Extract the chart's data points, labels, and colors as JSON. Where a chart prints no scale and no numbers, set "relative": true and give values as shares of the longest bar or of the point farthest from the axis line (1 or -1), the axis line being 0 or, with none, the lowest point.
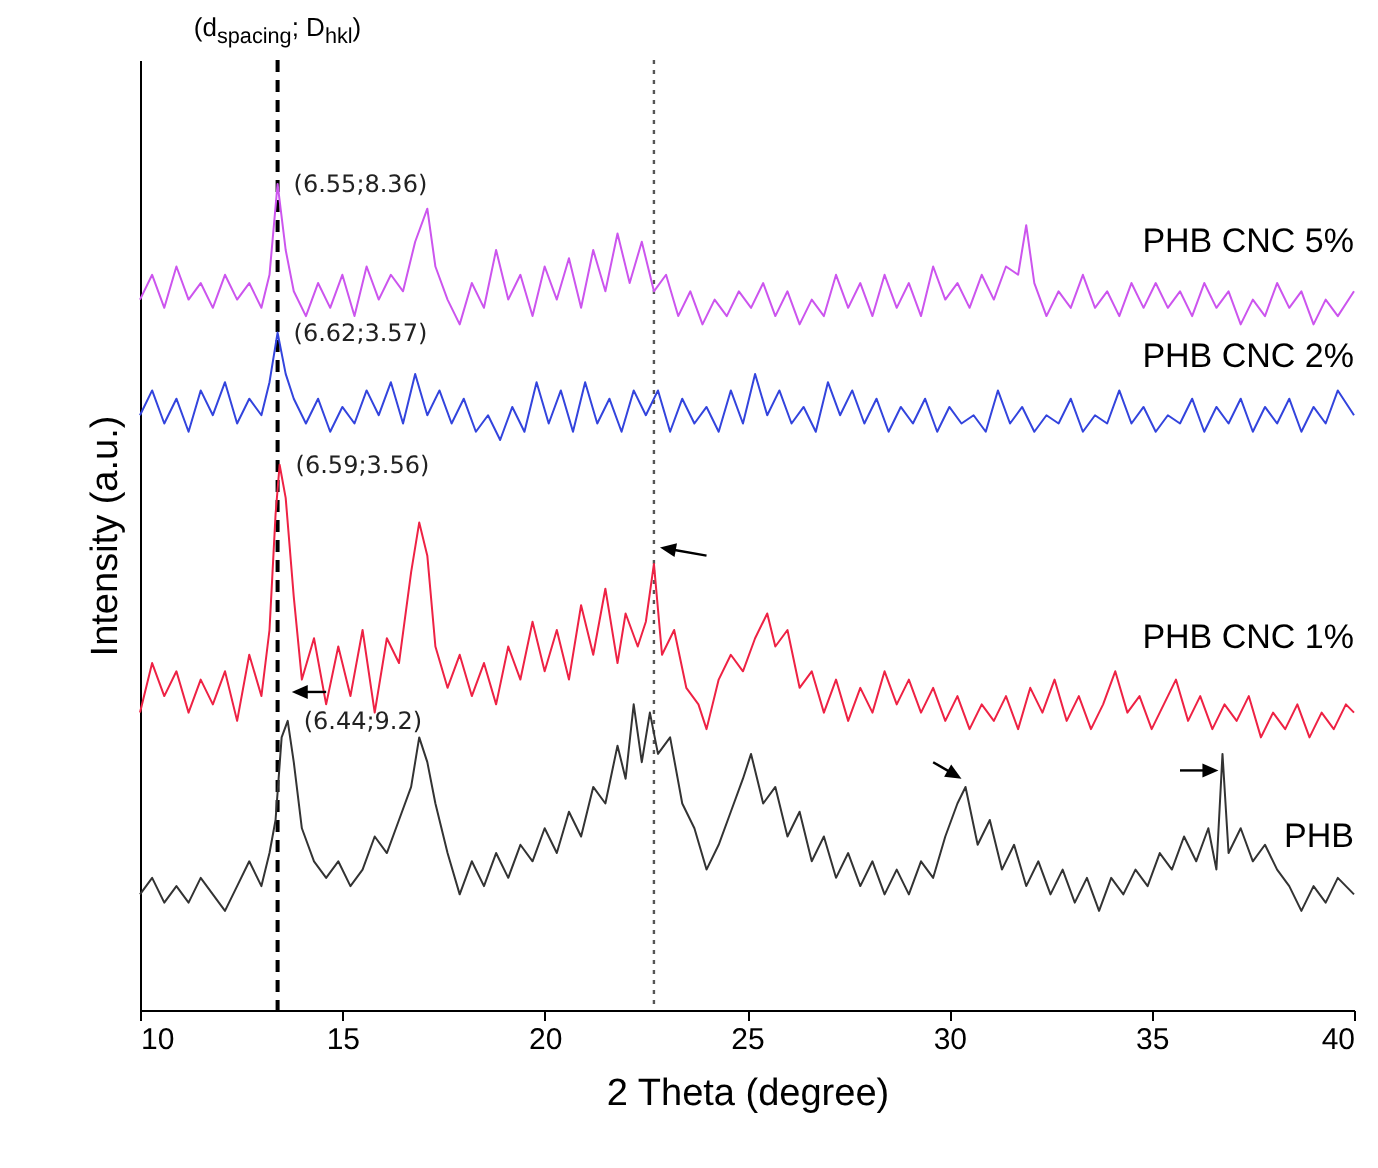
{
  "chart_data": {
    "type": "line",
    "relative": true,
    "xlabel": "2 Theta (degree)",
    "ylabel": "Intensity (a.u.)",
    "xlim": [
      10,
      40
    ],
    "xticks": [
      10,
      15,
      20,
      25,
      30,
      35,
      40
    ],
    "tick_labels": "x",
    "grid": false,
    "legend": false,
    "marker": "none",
    "line_style": "solid",
    "series": [
      {
        "name": "PHB CNC 5%",
        "color": "#cc55ee",
        "x": [
          10.0,
          10.3,
          10.6,
          10.9,
          11.2,
          11.5,
          11.8,
          12.1,
          12.4,
          12.7,
          13.0,
          13.2,
          13.4,
          13.6,
          13.8,
          14.1,
          14.4,
          14.7,
          15.0,
          15.3,
          15.6,
          15.9,
          16.2,
          16.5,
          16.8,
          17.1,
          17.3,
          17.6,
          17.9,
          18.2,
          18.5,
          18.8,
          19.1,
          19.4,
          19.7,
          20.0,
          20.3,
          20.6,
          20.9,
          21.2,
          21.5,
          21.8,
          22.1,
          22.4,
          22.7,
          23.0,
          23.3,
          23.6,
          23.9,
          24.2,
          24.5,
          24.8,
          25.1,
          25.4,
          25.7,
          26.0,
          26.3,
          26.6,
          26.9,
          27.2,
          27.5,
          27.8,
          28.1,
          28.4,
          28.7,
          29.0,
          29.3,
          29.6,
          29.9,
          30.2,
          30.5,
          30.8,
          31.1,
          31.4,
          31.7,
          31.9,
          32.1,
          32.4,
          32.7,
          33.0,
          33.3,
          33.6,
          33.9,
          34.2,
          34.5,
          34.8,
          35.1,
          35.4,
          35.7,
          36.0,
          36.3,
          36.6,
          36.9,
          37.2,
          37.5,
          37.8,
          38.1,
          38.4,
          38.7,
          39.0,
          39.3,
          39.6,
          40.0
        ],
        "values": [
          0.86,
          0.89,
          0.85,
          0.9,
          0.86,
          0.88,
          0.85,
          0.89,
          0.86,
          0.88,
          0.85,
          0.89,
          1.0,
          0.92,
          0.87,
          0.84,
          0.88,
          0.85,
          0.89,
          0.84,
          0.9,
          0.86,
          0.89,
          0.87,
          0.93,
          0.97,
          0.9,
          0.86,
          0.83,
          0.88,
          0.85,
          0.92,
          0.86,
          0.89,
          0.84,
          0.9,
          0.86,
          0.91,
          0.85,
          0.92,
          0.87,
          0.94,
          0.88,
          0.93,
          0.87,
          0.89,
          0.84,
          0.87,
          0.83,
          0.86,
          0.84,
          0.87,
          0.85,
          0.88,
          0.84,
          0.87,
          0.83,
          0.86,
          0.84,
          0.89,
          0.85,
          0.88,
          0.84,
          0.89,
          0.85,
          0.88,
          0.84,
          0.9,
          0.86,
          0.88,
          0.85,
          0.89,
          0.86,
          0.9,
          0.89,
          0.95,
          0.88,
          0.84,
          0.87,
          0.85,
          0.89,
          0.85,
          0.87,
          0.84,
          0.88,
          0.85,
          0.88,
          0.85,
          0.87,
          0.84,
          0.88,
          0.85,
          0.87,
          0.83,
          0.86,
          0.84,
          0.88,
          0.85,
          0.87,
          0.83,
          0.86,
          0.84,
          0.87
        ]
      },
      {
        "name": "PHB CNC 2%",
        "color": "#3344dd",
        "x": [
          10.0,
          10.3,
          10.6,
          10.9,
          11.2,
          11.5,
          11.8,
          12.1,
          12.4,
          12.7,
          13.0,
          13.2,
          13.4,
          13.6,
          13.8,
          14.1,
          14.4,
          14.7,
          15.0,
          15.3,
          15.6,
          15.9,
          16.2,
          16.5,
          16.8,
          17.1,
          17.4,
          17.7,
          18.0,
          18.3,
          18.6,
          18.9,
          19.2,
          19.5,
          19.8,
          20.1,
          20.4,
          20.7,
          21.0,
          21.3,
          21.6,
          21.9,
          22.2,
          22.5,
          22.8,
          23.1,
          23.4,
          23.7,
          24.0,
          24.3,
          24.6,
          24.9,
          25.2,
          25.5,
          25.8,
          26.1,
          26.4,
          26.7,
          27.0,
          27.3,
          27.6,
          27.9,
          28.2,
          28.5,
          28.8,
          29.1,
          29.4,
          29.7,
          30.0,
          30.3,
          30.6,
          30.9,
          31.2,
          31.5,
          31.8,
          32.1,
          32.4,
          32.7,
          33.0,
          33.3,
          33.6,
          33.9,
          34.2,
          34.5,
          34.8,
          35.1,
          35.4,
          35.7,
          36.0,
          36.3,
          36.6,
          36.9,
          37.2,
          37.5,
          37.8,
          38.1,
          38.4,
          38.7,
          39.0,
          39.3,
          39.6,
          40.0
        ],
        "values": [
          0.72,
          0.75,
          0.71,
          0.74,
          0.7,
          0.75,
          0.72,
          0.76,
          0.71,
          0.74,
          0.72,
          0.76,
          0.82,
          0.77,
          0.74,
          0.71,
          0.74,
          0.7,
          0.73,
          0.71,
          0.75,
          0.72,
          0.76,
          0.71,
          0.77,
          0.72,
          0.75,
          0.71,
          0.74,
          0.7,
          0.72,
          0.69,
          0.73,
          0.7,
          0.76,
          0.71,
          0.75,
          0.7,
          0.76,
          0.71,
          0.74,
          0.7,
          0.75,
          0.72,
          0.75,
          0.7,
          0.74,
          0.71,
          0.73,
          0.7,
          0.75,
          0.71,
          0.77,
          0.72,
          0.75,
          0.71,
          0.73,
          0.7,
          0.76,
          0.72,
          0.75,
          0.71,
          0.74,
          0.7,
          0.73,
          0.71,
          0.74,
          0.7,
          0.73,
          0.71,
          0.72,
          0.7,
          0.75,
          0.71,
          0.73,
          0.7,
          0.72,
          0.71,
          0.74,
          0.7,
          0.72,
          0.71,
          0.75,
          0.71,
          0.73,
          0.7,
          0.72,
          0.71,
          0.74,
          0.7,
          0.73,
          0.71,
          0.74,
          0.7,
          0.73,
          0.71,
          0.74,
          0.7,
          0.73,
          0.71,
          0.75,
          0.72
        ]
      },
      {
        "name": "PHB CNC 1%",
        "color": "#ee2244",
        "x": [
          10.0,
          10.3,
          10.6,
          10.9,
          11.2,
          11.5,
          11.8,
          12.1,
          12.4,
          12.7,
          13.0,
          13.2,
          13.35,
          13.45,
          13.6,
          13.8,
          14.0,
          14.3,
          14.6,
          14.9,
          15.2,
          15.5,
          15.8,
          16.1,
          16.4,
          16.7,
          16.9,
          17.1,
          17.3,
          17.6,
          17.9,
          18.2,
          18.5,
          18.8,
          19.1,
          19.4,
          19.7,
          20.0,
          20.3,
          20.6,
          20.9,
          21.2,
          21.5,
          21.8,
          22.0,
          22.3,
          22.5,
          22.7,
          22.9,
          23.2,
          23.5,
          23.8,
          24.0,
          24.3,
          24.6,
          24.9,
          25.2,
          25.5,
          25.7,
          26.0,
          26.3,
          26.6,
          26.9,
          27.2,
          27.5,
          27.8,
          28.1,
          28.4,
          28.7,
          29.0,
          29.3,
          29.6,
          29.9,
          30.2,
          30.5,
          30.8,
          31.1,
          31.4,
          31.7,
          32.0,
          32.3,
          32.6,
          32.9,
          33.2,
          33.5,
          33.8,
          34.1,
          34.4,
          34.7,
          35.0,
          35.3,
          35.6,
          35.9,
          36.2,
          36.5,
          36.8,
          37.1,
          37.4,
          37.7,
          38.0,
          38.3,
          38.6,
          38.9,
          39.2,
          39.5,
          39.8,
          40.0
        ],
        "values": [
          0.36,
          0.42,
          0.38,
          0.41,
          0.36,
          0.4,
          0.37,
          0.41,
          0.35,
          0.43,
          0.38,
          0.46,
          0.6,
          0.66,
          0.62,
          0.5,
          0.4,
          0.45,
          0.37,
          0.44,
          0.38,
          0.46,
          0.36,
          0.45,
          0.42,
          0.53,
          0.59,
          0.55,
          0.44,
          0.39,
          0.43,
          0.38,
          0.42,
          0.37,
          0.44,
          0.4,
          0.47,
          0.41,
          0.46,
          0.4,
          0.49,
          0.43,
          0.51,
          0.42,
          0.48,
          0.44,
          0.47,
          0.54,
          0.43,
          0.46,
          0.39,
          0.37,
          0.34,
          0.4,
          0.43,
          0.41,
          0.45,
          0.48,
          0.44,
          0.46,
          0.39,
          0.41,
          0.36,
          0.4,
          0.35,
          0.39,
          0.36,
          0.41,
          0.37,
          0.4,
          0.36,
          0.39,
          0.35,
          0.38,
          0.34,
          0.37,
          0.35,
          0.38,
          0.34,
          0.39,
          0.36,
          0.4,
          0.35,
          0.38,
          0.34,
          0.37,
          0.41,
          0.36,
          0.38,
          0.34,
          0.37,
          0.4,
          0.35,
          0.38,
          0.34,
          0.37,
          0.35,
          0.38,
          0.33,
          0.36,
          0.34,
          0.37,
          0.33,
          0.36,
          0.34,
          0.37,
          0.36
        ]
      },
      {
        "name": "PHB",
        "color": "#333333",
        "x": [
          10.0,
          10.3,
          10.6,
          10.9,
          11.2,
          11.5,
          11.8,
          12.1,
          12.4,
          12.7,
          13.0,
          13.2,
          13.35,
          13.5,
          13.65,
          13.8,
          14.0,
          14.3,
          14.6,
          14.9,
          15.2,
          15.5,
          15.8,
          16.1,
          16.4,
          16.7,
          16.9,
          17.1,
          17.3,
          17.6,
          17.9,
          18.2,
          18.5,
          18.8,
          19.1,
          19.4,
          19.7,
          20.0,
          20.3,
          20.6,
          20.9,
          21.2,
          21.5,
          21.8,
          22.0,
          22.2,
          22.4,
          22.6,
          22.8,
          23.1,
          23.4,
          23.7,
          24.0,
          24.3,
          24.6,
          24.9,
          25.1,
          25.4,
          25.7,
          26.0,
          26.3,
          26.6,
          26.9,
          27.2,
          27.5,
          27.8,
          28.1,
          28.4,
          28.7,
          29.0,
          29.3,
          29.6,
          29.9,
          30.2,
          30.4,
          30.7,
          31.0,
          31.3,
          31.6,
          31.9,
          32.2,
          32.5,
          32.8,
          33.1,
          33.4,
          33.7,
          34.0,
          34.3,
          34.6,
          34.9,
          35.2,
          35.5,
          35.8,
          36.1,
          36.4,
          36.6,
          36.75,
          36.9,
          37.2,
          37.5,
          37.8,
          38.1,
          38.4,
          38.7,
          39.0,
          39.3,
          39.6,
          40.0
        ],
        "values": [
          0.14,
          0.16,
          0.13,
          0.15,
          0.13,
          0.16,
          0.14,
          0.12,
          0.15,
          0.18,
          0.15,
          0.19,
          0.23,
          0.33,
          0.35,
          0.3,
          0.22,
          0.18,
          0.16,
          0.18,
          0.15,
          0.17,
          0.21,
          0.19,
          0.23,
          0.27,
          0.33,
          0.3,
          0.25,
          0.19,
          0.14,
          0.18,
          0.15,
          0.19,
          0.16,
          0.2,
          0.18,
          0.22,
          0.19,
          0.24,
          0.21,
          0.27,
          0.25,
          0.32,
          0.28,
          0.37,
          0.3,
          0.36,
          0.31,
          0.33,
          0.25,
          0.22,
          0.17,
          0.2,
          0.24,
          0.28,
          0.31,
          0.25,
          0.27,
          0.21,
          0.24,
          0.18,
          0.21,
          0.16,
          0.19,
          0.15,
          0.18,
          0.14,
          0.17,
          0.14,
          0.18,
          0.16,
          0.21,
          0.25,
          0.27,
          0.2,
          0.23,
          0.17,
          0.2,
          0.15,
          0.18,
          0.14,
          0.17,
          0.13,
          0.16,
          0.12,
          0.16,
          0.14,
          0.17,
          0.15,
          0.19,
          0.17,
          0.21,
          0.18,
          0.22,
          0.17,
          0.31,
          0.19,
          0.22,
          0.18,
          0.2,
          0.17,
          0.15,
          0.12,
          0.15,
          0.13,
          0.16,
          0.14
        ]
      }
    ],
    "ref_lines": [
      {
        "axis": "x",
        "value": 13.4,
        "line_style": "dashed",
        "color": "#000000"
      },
      {
        "axis": "x",
        "value": 22.7,
        "line_style": "dotted",
        "color": "#555555"
      }
    ],
    "annotations": [
      "(d$_{spacing}$; D$_{hkl}$)",
      {
        "text": "(6.55;8.36)",
        "x": 13.4,
        "y": 1.0
      },
      {
        "text": "(6.62;3.57)",
        "x": 13.4,
        "y": 0.82
      },
      {
        "text": "(6.59;3.56)",
        "x": 13.45,
        "y": 0.66
      },
      {
        "text": "(6.44;9.2)",
        "x": 13.65,
        "y": 0.35
      }
    ]
  }
}
